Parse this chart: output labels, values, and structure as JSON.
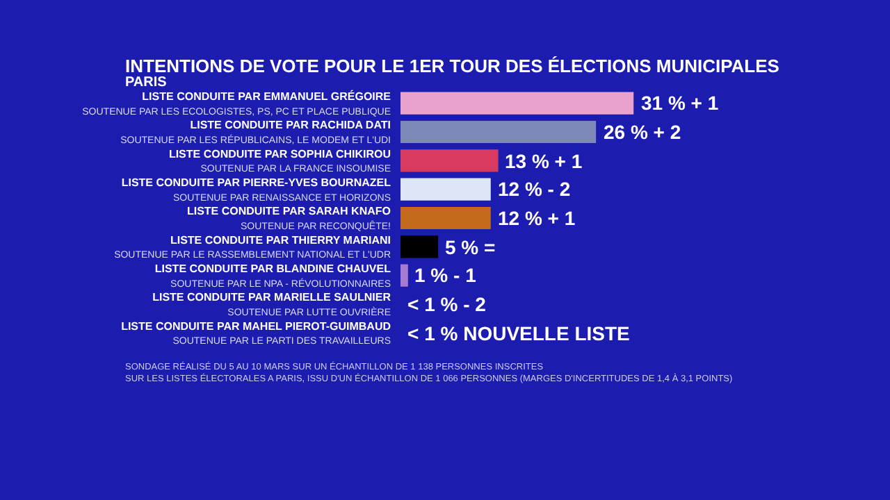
{
  "chart_data": {
    "type": "bar",
    "orientation": "horizontal",
    "title": "INTENTIONS DE VOTE POUR LE 1ER TOUR DES ÉLECTIONS MUNICIPALES",
    "subtitle": "PARIS",
    "categories": [
      "LISTE CONDUITE PAR EMMANUEL GRÉGOIRE\nSOUTENUE PAR LES ECOLOGISTES, PS, PC ET PLACE PUBLIQUE",
      "LISTE CONDUITE PAR RACHIDA DATI\nSOUTENUE PAR LES RÉPUBLICAINS, LE MODEM ET L'UDI",
      "LISTE CONDUITE PAR SOPHIA CHIKIROU\nSOUTENUE PAR LA FRANCE INSOUMISE",
      "LISTE CONDUITE PAR PIERRE-YVES BOURNAZEL\nSOUTENUE PAR RENAISSANCE ET HORIZONS",
      "LISTE CONDUITE PAR SARAH KNAFO\nSOUTENUE PAR RECONQUÊTE!",
      "LISTE CONDUITE PAR THIERRY MARIANI\nSOUTENUE PAR LE RASSEMBLEMENT NATIONAL ET L'UDR",
      "LISTE CONDUITE PAR BLANDINE CHAUVEL\nSOUTENUE PAR LE NPA - RÉVOLUTIONNAIRES",
      "LISTE CONDUITE PAR MARIELLE SAULNIER\nSOUTENUE PAR LUTTE OUVRIÈRE",
      "LISTE CONDUITE PAR MAHEL PIEROT-GUIMBAUD\nSOUTENUE PAR LE PARTI DES TRAVAILLEURS"
    ],
    "values": [
      31,
      26,
      13,
      12,
      12,
      5,
      1,
      null,
      null
    ],
    "colors": [
      "#e8a2cb",
      "#7f89b9",
      "#d93b60",
      "#dde6f6",
      "#c46a1c",
      "#000000",
      "#a47ad2",
      null,
      null
    ],
    "value_labels": [
      "31 % + 1",
      "26 % + 2",
      "13 % + 1",
      "12 % - 2",
      "12 % + 1",
      "5 % =",
      "1 % - 1",
      "< 1 % - 2",
      "< 1 % NOUVELLE LISTE"
    ],
    "annotations": [
      "SONDAGE RÉALISÉ DU 5 AU 10 MARS SUR UN ÉCHANTILLON DE 1 138 PERSONNES INSCRITES\nSUR LES LISTES ÉLECTORALES A PARIS, ISSU D'UN ÉCHANTILLON DE 1 066 PERSONNES (MARGES D'INCERTITUDES DE 1,4 À 3,1 POINTS)"
    ]
  }
}
